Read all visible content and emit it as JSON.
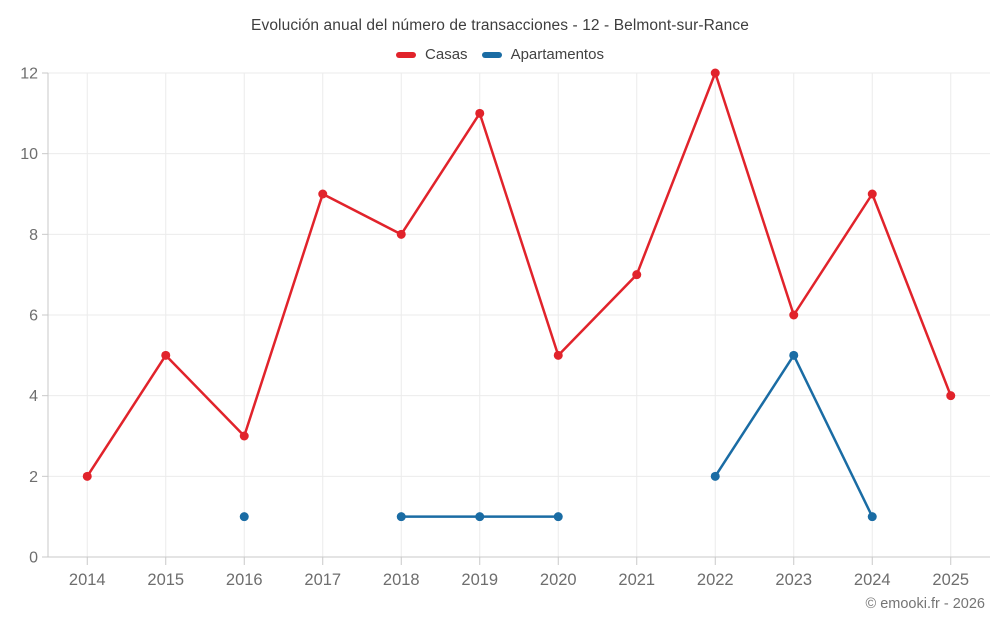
{
  "title": "Evolución anual del número de transacciones - 12 - Belmont-sur-Rance",
  "footer": "© emooki.fr - 2026",
  "colors": {
    "casas": "#e1232b",
    "apartamentos": "#1a6ca4",
    "grid": "#ebebeb",
    "axis": "#c9c9c9",
    "tick_label": "#6e6e6e",
    "title_text": "#3e3e3e",
    "footer_text": "#757575"
  },
  "chart_data": {
    "type": "line",
    "x": [
      2014,
      2015,
      2016,
      2017,
      2018,
      2019,
      2020,
      2021,
      2022,
      2023,
      2024,
      2025
    ],
    "series": [
      {
        "name": "Casas",
        "color": "#e1232b",
        "values": [
          2,
          5,
          3,
          9,
          8,
          11,
          5,
          7,
          12,
          6,
          9,
          4
        ]
      },
      {
        "name": "Apartamentos",
        "color": "#1a6ca4",
        "values": [
          null,
          null,
          1,
          null,
          1,
          1,
          1,
          null,
          2,
          5,
          1,
          null
        ]
      }
    ],
    "title": "Evolución anual del número de transacciones - 12 - Belmont-sur-Rance",
    "xlabel": "",
    "ylabel": "",
    "ylim": [
      0,
      12
    ],
    "yticks": [
      0,
      2,
      4,
      6,
      8,
      10,
      12
    ],
    "grid": true,
    "legend_position": "top",
    "markers": true
  }
}
